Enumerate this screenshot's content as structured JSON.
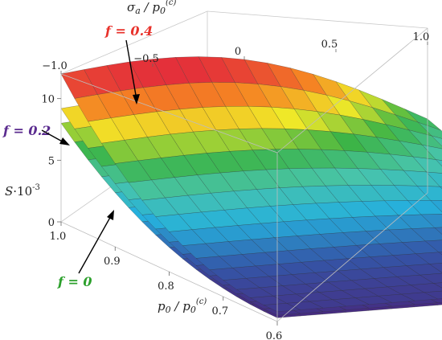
{
  "chart_data": {
    "type": "surface3d",
    "title": "",
    "colormap": "rainbow",
    "x_axis": {
      "label_main": "p",
      "label_sub": "0",
      "label_den": "p",
      "label_den_sub": "0",
      "label_den_sup": "(c)",
      "range": [
        0.6,
        1.0
      ],
      "ticks": [
        "1.0",
        "0.9",
        "0.8",
        "0.7",
        "0.6"
      ]
    },
    "y_axis": {
      "label_main": "σ",
      "label_sub": "a",
      "label_den": "p",
      "label_den_sub": "0",
      "label_den_sup": "(c)",
      "range": [
        -1.0,
        1.0
      ],
      "ticks": [
        "−1.0",
        "−0.5",
        "0",
        "0.5",
        "1.0"
      ]
    },
    "z_axis": {
      "label_main": "S",
      "label_mult": "·10",
      "label_exp": "-3",
      "range": [
        0,
        12
      ],
      "ticks": [
        "0",
        "5",
        "10"
      ]
    },
    "series": [
      {
        "name": "f = 0",
        "f": 0.0,
        "color": "#2ca02c",
        "z_corner_near": 8.0,
        "z_min": 0.3
      },
      {
        "name": "f = 0.2",
        "f": 0.2,
        "color": "#5b2c8f",
        "z_corner_near": 9.2,
        "z_min": 0.5
      },
      {
        "name": "f = 0.4",
        "f": 0.4,
        "color": "#e8322b",
        "z_corner_near": 12.0,
        "z_min": 0.8
      }
    ],
    "annotations": [
      {
        "text": "f = 0.4",
        "color": "#e8322b"
      },
      {
        "text": "f = 0.2",
        "color": "#5b2c8f"
      },
      {
        "text": "f = 0",
        "color": "#2ca02c"
      }
    ]
  }
}
